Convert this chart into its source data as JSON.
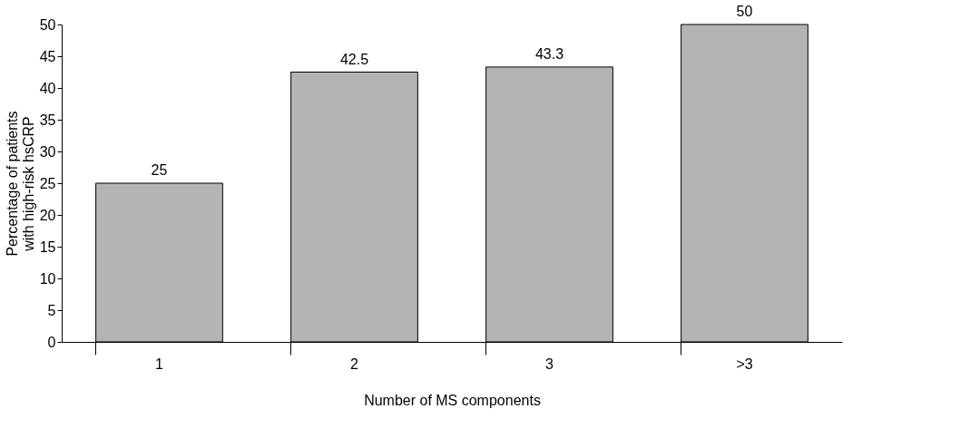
{
  "chart_data": {
    "type": "bar",
    "xlabel": "Number of MS components",
    "ylabel": "Percentage of patients\nwith high-risk hsCRP",
    "categories": [
      "1",
      "2",
      "3",
      ">3"
    ],
    "values": [
      25,
      42.5,
      43.3,
      50
    ],
    "color": "#b4b4b4",
    "ylim": [
      0,
      50
    ],
    "yticks": [
      0,
      5,
      10,
      15,
      20,
      25,
      30,
      35,
      40,
      45,
      50
    ],
    "grid": false,
    "data_labels": true
  }
}
